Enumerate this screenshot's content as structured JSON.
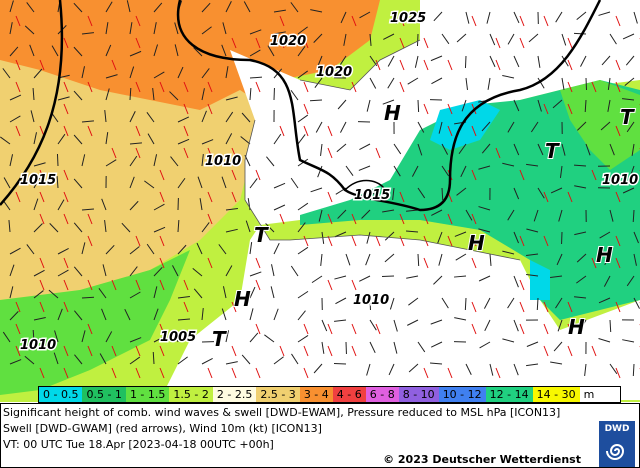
{
  "legend": {
    "unit": "m",
    "bins": [
      {
        "label": "0 - 0.5",
        "color": "#00d8e8"
      },
      {
        "label": "0.5 - 1",
        "color": "#20c060"
      },
      {
        "label": "1 - 1.5",
        "color": "#60e040"
      },
      {
        "label": "1.5 - 2",
        "color": "#c0f040"
      },
      {
        "label": "2 - 2.5",
        "color": "#fffce0"
      },
      {
        "label": "2.5 - 3",
        "color": "#f0d070"
      },
      {
        "label": "3 - 4",
        "color": "#f89030"
      },
      {
        "label": "4 - 6",
        "color": "#f04040"
      },
      {
        "label": "6 - 8",
        "color": "#e060e0"
      },
      {
        "label": "8 - 10",
        "color": "#9060e0"
      },
      {
        "label": "10 - 12",
        "color": "#4080f0"
      },
      {
        "label": "12 - 14",
        "color": "#20d080"
      },
      {
        "label": "14 - 30",
        "color": "#f8f800"
      }
    ]
  },
  "isobars": [
    "1025",
    "1020",
    "1020",
    "1010",
    "1015",
    "1015",
    "1010",
    "1010",
    "1010",
    "1005"
  ],
  "centers": [
    "H",
    "T",
    "T",
    "H",
    "T",
    "H",
    "H",
    "T",
    "H"
  ],
  "info": {
    "line1": "Significant height of comb. wind waves & swell [DWD-EWAM], Pressure reduced to MSL hPa [ICON13]",
    "line2": "Swell [DWD-GWAM] (red arrows), Wind 10m (kt) [ICON13]",
    "line3": "VT: 00 UTC Tue 18.Apr [2023-04-18 00UTC +00h]",
    "copyright": "© 2023 Deutscher Wetterdienst",
    "logo": "DWD"
  }
}
